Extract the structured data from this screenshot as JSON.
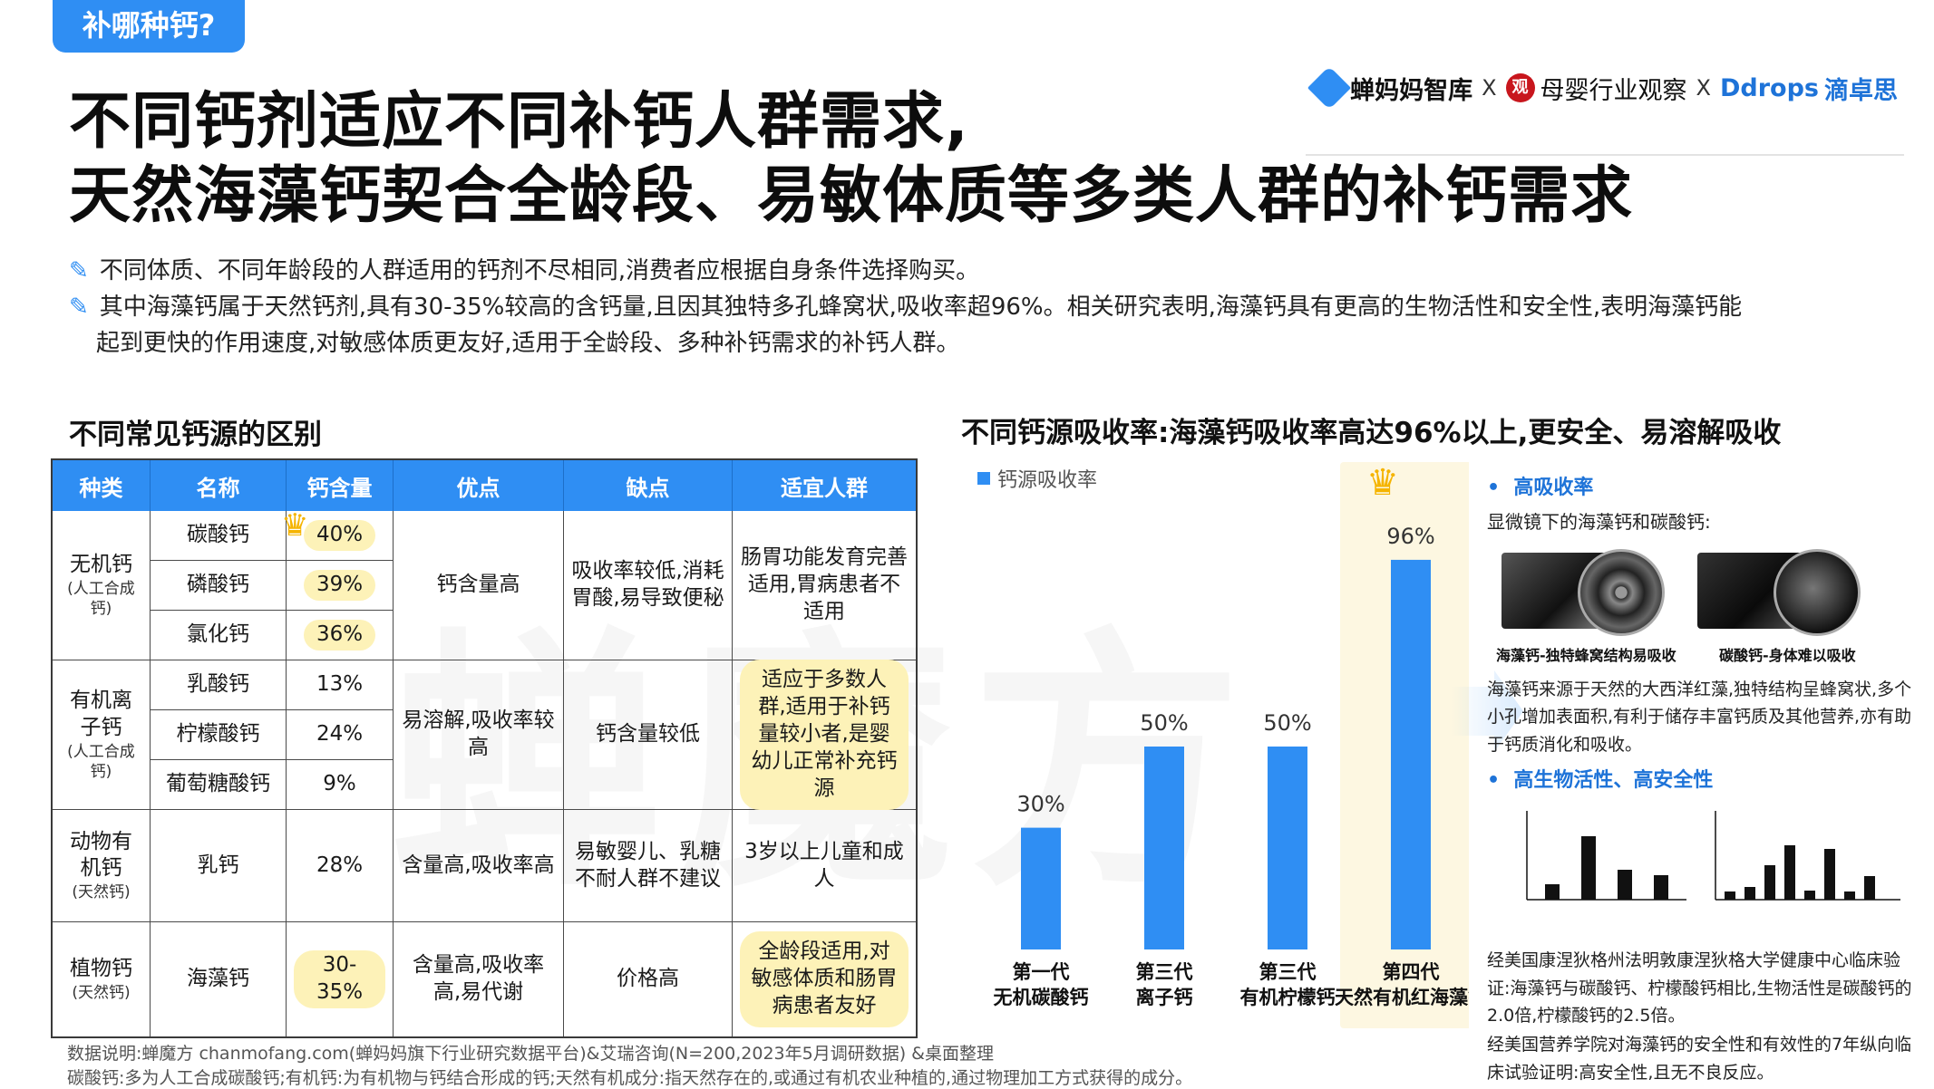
{
  "tag": "补哪种钙?",
  "logos": {
    "logo1": "蝉妈妈智库",
    "sep": "X",
    "logo2": "母婴行业观察",
    "logo3a": "Ddrops",
    "logo3b": "滴卓思"
  },
  "title": {
    "line1": "不同钙剂适应不同补钙人群需求,",
    "line2": "天然海藻钙契合全龄段、易敏体质等多类人群的补钙需求"
  },
  "bullets": [
    "不同体质、不同年龄段的人群适用的钙剂不尽相同,消费者应根据自身条件选择购买。",
    "其中海藻钙属于天然钙剂,具有30-35%较高的含钙量,且因其独特多孔蜂窝状,吸收率超96%。相关研究表明,海藻钙具有更高的生物活性和安全性,表明海藻钙能",
    "起到更快的作用速度,对敏感体质更友好,适用于全龄段、多种补钙需求的补钙人群。"
  ],
  "table": {
    "title": "不同常见钙源的区别",
    "headers": [
      "种类",
      "名称",
      "钙含量",
      "优点",
      "缺点",
      "适宜人群"
    ],
    "groups": [
      {
        "type": "无机钙",
        "sub": "(人工合成钙)",
        "pros": "钙含量高",
        "cons": "吸收率较低,消耗胃酸,易导致便秘",
        "suit": "肠胃功能发育完善适用,胃病患者不适用",
        "rows": [
          {
            "name": "碳酸钙",
            "content": "40%"
          },
          {
            "name": "磷酸钙",
            "content": "39%"
          },
          {
            "name": "氯化钙",
            "content": "36%"
          }
        ]
      },
      {
        "type": "有机离子钙",
        "sub": "(人工合成钙)",
        "pros": "易溶解,吸收率较高",
        "cons": "钙含量较低",
        "suit": "适应于多数人群,适用于补钙量较小者,是婴幼儿正常补充钙源",
        "rows": [
          {
            "name": "乳酸钙",
            "content": "13%"
          },
          {
            "name": "柠檬酸钙",
            "content": "24%"
          },
          {
            "name": "葡萄糖酸钙",
            "content": "9%"
          }
        ]
      },
      {
        "type": "动物有机钙",
        "sub": "(天然钙)",
        "pros": "含量高,吸收率高",
        "cons": "易敏婴儿、乳糖不耐人群不建议",
        "suit": "3岁以上儿童和成人",
        "rows": [
          {
            "name": "乳钙",
            "content": "28%"
          }
        ]
      },
      {
        "type": "植物钙",
        "sub": "(天然钙)",
        "pros": "含量高,吸收率高,易代谢",
        "cons": "价格高",
        "suit": "全龄段适用,对敏感体质和肠胃病患者友好",
        "rows": [
          {
            "name": "海藻钙",
            "content": "30-35%"
          }
        ]
      }
    ]
  },
  "chart_title": "不同钙源吸收率:海藻钙吸收率高达96%以上,更安全、易溶解吸收",
  "chart_data": {
    "type": "bar",
    "categories": [
      "第一代\n无机碳酸钙",
      "第三代\n离子钙",
      "第三代\n有机柠檬钙",
      "第四代\n天然有机红海藻钙"
    ],
    "series": [
      {
        "name": "钙源吸收率",
        "values": [
          30,
          50,
          50,
          96
        ]
      }
    ],
    "value_labels": [
      "30%",
      "50%",
      "50%",
      "96%"
    ],
    "ylim": [
      0,
      100
    ],
    "grid": false,
    "legend": "top-left",
    "highlight_index": 3,
    "bar_color": "#2f8ef3",
    "highlight_bg": "#fdf7e1"
  },
  "right_panel": {
    "head1": "高吸收率",
    "micro_title": "显微镜下的海藻钙和碳酸钙:",
    "cap1": "海藻钙-独特蜂窝结构易吸收",
    "cap2": "碳酸钙-身体难以吸收",
    "text1": "海藻钙来源于天然的大西洋红藻,独特结构呈蜂窝状,多个小孔增加表面积,有利于储存丰富钙质及其他营养,亦有助于钙质消化和吸收。",
    "head2": "高生物活性、高安全性",
    "text2": "经美国康涅狄格州法明敦康涅狄格大学健康中心临床验证:海藻钙与碳酸钙、柠檬酸钙相比,生物活性是碳酸钙的2.0倍,柠檬酸钙的2.5倍。",
    "text3": "经美国营养学院对海藻钙的安全性和有效性的7年纵向临床试验证明:高安全性,且无不良反应。"
  },
  "footnotes": [
    "数据说明:蝉魔方 chanmofang.com(蝉妈妈旗下行业研究数据平台)&艾瑞咨询(N=200,2023年5月调研数据) &桌面整理",
    "碳酸钙:多为人工合成碳酸钙;有机钙:为有机物与钙结合形成的钙;天然有机成分:指天然存在的,或通过有机农业种植的,通过物理加工方式获得的成分。"
  ],
  "watermark": "蝉魔方",
  "colors": {
    "accent": "#2f8ef3",
    "highlight": "#fdf2b8",
    "crown": "#f5b400"
  }
}
